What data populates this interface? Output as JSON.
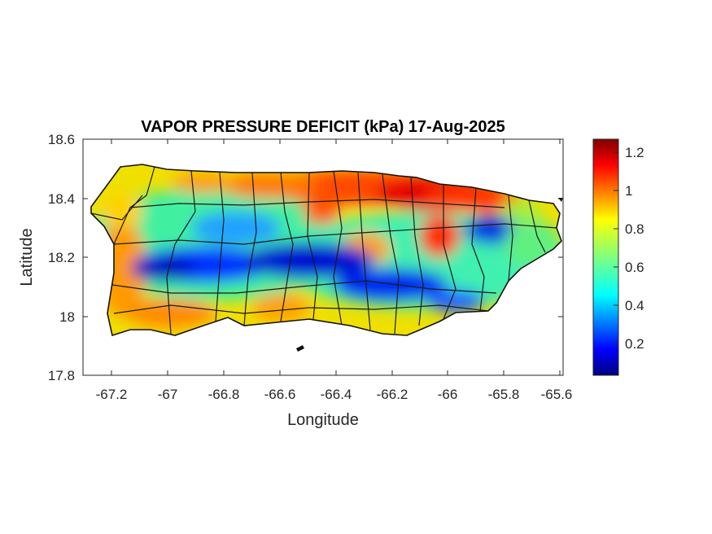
{
  "map": {
    "title": "VAPOR PRESSURE DEFICIT (kPa) 17-Aug-2025",
    "x_label": "Longitude",
    "y_label": "Latitude",
    "x_ticks": [
      "-67.2",
      "-67",
      "-66.8",
      "-66.6",
      "-66.4",
      "-66.2",
      "-66",
      "-65.8",
      "-65.6"
    ],
    "y_ticks": [
      "18.6",
      "18.4",
      "18.2",
      "18"
    ],
    "y_ticks_bottom": "17.8",
    "x_range": [
      -67.3,
      -65.58
    ],
    "y_range": [
      17.8,
      18.6
    ],
    "region": "Puerto Rico",
    "variable_units": "kPa",
    "colormap": "jet",
    "boundaries": "municipalities"
  },
  "colorbar": {
    "ticks": [
      "1.2",
      "1",
      "0.8",
      "0.6",
      "0.4",
      "0.2"
    ],
    "range": [
      0.02,
      1.29
    ],
    "tick_values": [
      1.2,
      1.0,
      0.8,
      0.6,
      0.4,
      0.2
    ]
  },
  "field_summary": {
    "high_vpd_zones": [
      "north coast central",
      "northeast near -66.1",
      "southwest coast",
      "south coast near -66.6"
    ],
    "low_vpd_zones": [
      "central mountains band",
      "east-central near -65.8, 18.28"
    ]
  }
}
